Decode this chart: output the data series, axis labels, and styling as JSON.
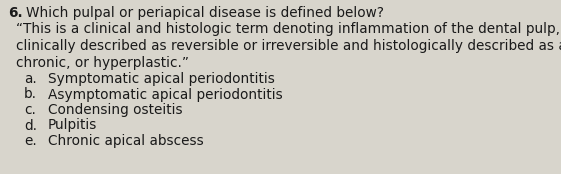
{
  "background_color": "#d8d5cc",
  "text_color": "#1a1a1a",
  "question_number": "6.",
  "question_text": "Which pulpal or periapical disease is defined below?",
  "quote_lines": [
    "“This is a clinical and histologic term denoting inflammation of the dental pulp,",
    "clinically described as reversible or irreversible and histologically described as acute,",
    "chronic, or hyperplastic.”"
  ],
  "options": [
    [
      "a.",
      "Symptomatic apical periodontitis"
    ],
    [
      "b.",
      "Asymptomatic apical periodontitis"
    ],
    [
      "c.",
      "Condensing osteitis"
    ],
    [
      "d.",
      "Pulpitis"
    ],
    [
      "e.",
      "Chronic apical abscess"
    ]
  ],
  "font_size": 9.8,
  "font_family": "DejaVu Sans"
}
